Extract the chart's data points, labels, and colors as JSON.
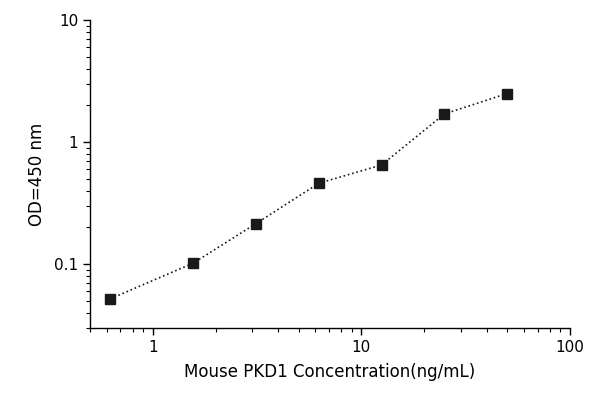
{
  "x": [
    0.625,
    1.563,
    3.125,
    6.25,
    12.5,
    25,
    50
  ],
  "y": [
    0.052,
    0.102,
    0.215,
    0.46,
    0.65,
    1.7,
    2.5
  ],
  "xlim": [
    0.5,
    100
  ],
  "ylim": [
    0.03,
    10
  ],
  "xlabel": "Mouse PKD1 Concentration(ng/mL)",
  "ylabel": "OD=450 nm",
  "marker": "s",
  "marker_color": "#1a1a1a",
  "marker_size": 7,
  "line_style": "dotted",
  "line_color": "#1a1a1a",
  "line_width": 1.2,
  "background_color": "#ffffff",
  "axis_fontsize": 12,
  "tick_fontsize": 11,
  "yticks": [
    0.1,
    1,
    10
  ],
  "xticks": [
    1,
    10,
    100
  ]
}
